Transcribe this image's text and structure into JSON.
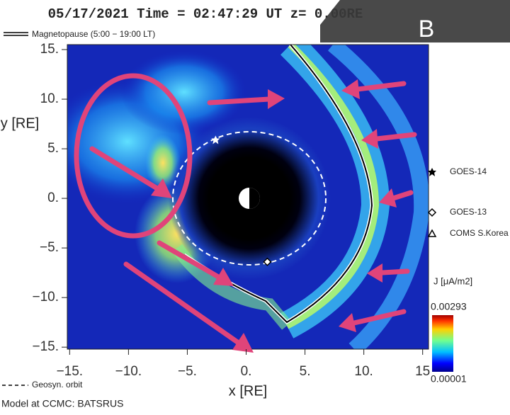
{
  "chart_data": {
    "type": "heatmap",
    "title": "05/17/2021  Time = 02:47:29 UT  z= 0.00RE",
    "panel_label": "B",
    "xlabel": "x [RE]",
    "ylabel": "y [RE]",
    "xlim": [
      -15.2,
      15.5
    ],
    "ylim": [
      -15.2,
      15.5
    ],
    "xticks": [
      {
        "value": -15,
        "label": "−15."
      },
      {
        "value": -10,
        "label": "−10."
      },
      {
        "value": -5,
        "label": "−5."
      },
      {
        "value": 0,
        "label": "0."
      },
      {
        "value": 5,
        "label": "5."
      },
      {
        "value": 10,
        "label": "10."
      },
      15
    ],
    "yticks": [
      {
        "value": 15,
        "label": "15."
      },
      {
        "value": 10,
        "label": "10."
      },
      {
        "value": 5,
        "label": "5."
      },
      {
        "value": 0,
        "label": "0."
      },
      {
        "value": -5,
        "label": "−5."
      },
      {
        "value": -10,
        "label": "−10."
      },
      {
        "value": -15,
        "label": "−15."
      }
    ],
    "magnetopause_legend": "Magnetopause (5:00 − 19:00 LT)",
    "orbit_legend": "Geosyn. orbit",
    "satellites": [
      {
        "name": "GOES-14",
        "x": -2.6,
        "y": 5.9
      },
      {
        "name": "GOES-13",
        "x": 1.8,
        "y": -6.4
      },
      {
        "name": "COMS S.Korea"
      }
    ],
    "colorbar": {
      "label": "J [μA/m2]",
      "max": 0.00293,
      "min": 1e-05
    },
    "footer": "Model at CCMC: BATSRUS"
  }
}
